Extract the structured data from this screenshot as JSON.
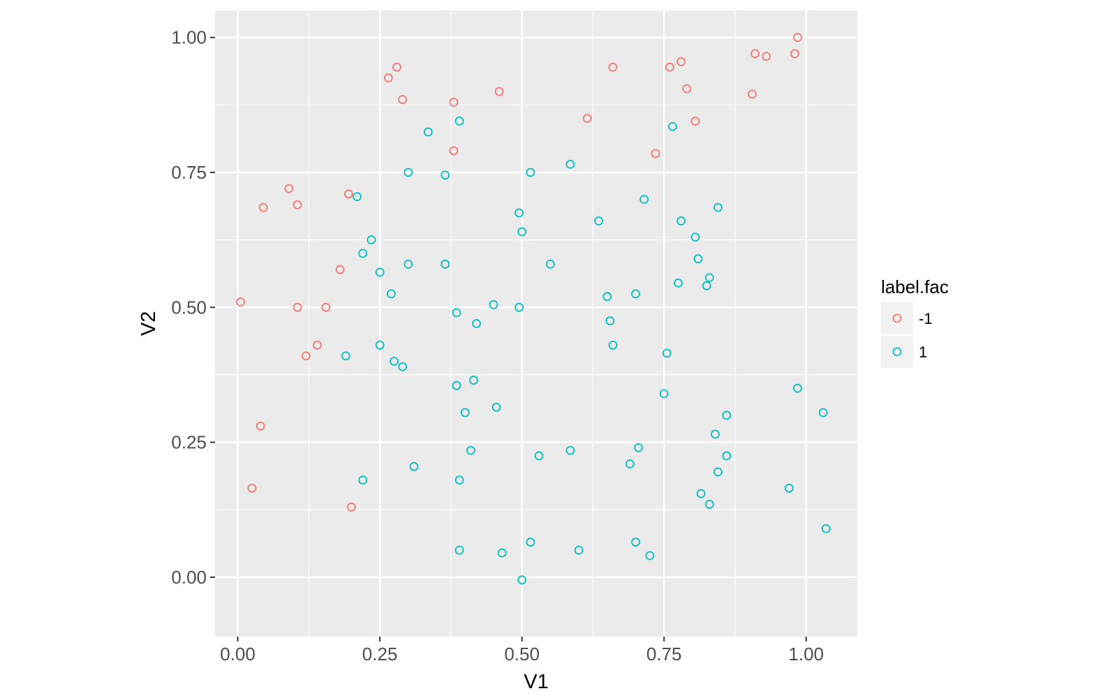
{
  "chart_data": {
    "type": "scatter",
    "title": "",
    "xlabel": "V1",
    "ylabel": "V2",
    "xlim": [
      -0.04,
      1.09
    ],
    "ylim": [
      -0.11,
      1.05
    ],
    "x_ticks": [
      0.0,
      0.25,
      0.5,
      0.75,
      1.0
    ],
    "x_tick_labels": [
      "0.00",
      "0.25",
      "0.50",
      "0.75",
      "1.00"
    ],
    "y_ticks": [
      0.0,
      0.25,
      0.5,
      0.75,
      1.0
    ],
    "y_tick_labels": [
      "0.00",
      "0.25",
      "0.50",
      "0.75",
      "1.00"
    ],
    "grid": true,
    "legend": {
      "title": "label.fac",
      "placement": "right"
    },
    "colors": {
      "panel_bg": "#EBEBEB",
      "grid": "#FFFFFF",
      "neg": "#F8766D",
      "pos": "#00BFC4"
    },
    "series": [
      {
        "name": "-1",
        "color": "#F8766D",
        "points": [
          [
            0.005,
            0.51
          ],
          [
            0.025,
            0.165
          ],
          [
            0.04,
            0.28
          ],
          [
            0.045,
            0.685
          ],
          [
            0.09,
            0.72
          ],
          [
            0.105,
            0.5
          ],
          [
            0.105,
            0.69
          ],
          [
            0.12,
            0.41
          ],
          [
            0.14,
            0.43
          ],
          [
            0.155,
            0.5
          ],
          [
            0.18,
            0.57
          ],
          [
            0.195,
            0.71
          ],
          [
            0.2,
            0.13
          ],
          [
            0.265,
            0.925
          ],
          [
            0.28,
            0.945
          ],
          [
            0.29,
            0.885
          ],
          [
            0.38,
            0.88
          ],
          [
            0.38,
            0.79
          ],
          [
            0.46,
            0.9
          ],
          [
            0.615,
            0.85
          ],
          [
            0.66,
            0.945
          ],
          [
            0.735,
            0.785
          ],
          [
            0.76,
            0.945
          ],
          [
            0.78,
            0.955
          ],
          [
            0.79,
            0.905
          ],
          [
            0.805,
            0.845
          ],
          [
            0.905,
            0.895
          ],
          [
            0.91,
            0.97
          ],
          [
            0.93,
            0.965
          ],
          [
            0.98,
            0.97
          ],
          [
            0.985,
            1.0
          ]
        ]
      },
      {
        "name": "1",
        "color": "#00BFC4",
        "points": [
          [
            0.19,
            0.41
          ],
          [
            0.21,
            0.705
          ],
          [
            0.22,
            0.6
          ],
          [
            0.22,
            0.18
          ],
          [
            0.235,
            0.625
          ],
          [
            0.25,
            0.43
          ],
          [
            0.25,
            0.565
          ],
          [
            0.27,
            0.525
          ],
          [
            0.275,
            0.4
          ],
          [
            0.29,
            0.39
          ],
          [
            0.3,
            0.75
          ],
          [
            0.3,
            0.58
          ],
          [
            0.31,
            0.205
          ],
          [
            0.335,
            0.825
          ],
          [
            0.365,
            0.745
          ],
          [
            0.365,
            0.58
          ],
          [
            0.385,
            0.355
          ],
          [
            0.385,
            0.49
          ],
          [
            0.39,
            0.05
          ],
          [
            0.39,
            0.845
          ],
          [
            0.39,
            0.18
          ],
          [
            0.4,
            0.305
          ],
          [
            0.41,
            0.235
          ],
          [
            0.415,
            0.365
          ],
          [
            0.42,
            0.47
          ],
          [
            0.45,
            0.505
          ],
          [
            0.455,
            0.315
          ],
          [
            0.465,
            0.045
          ],
          [
            0.495,
            0.5
          ],
          [
            0.495,
            0.675
          ],
          [
            0.5,
            0.64
          ],
          [
            0.5,
            -0.005
          ],
          [
            0.515,
            0.065
          ],
          [
            0.515,
            0.75
          ],
          [
            0.53,
            0.225
          ],
          [
            0.55,
            0.58
          ],
          [
            0.585,
            0.765
          ],
          [
            0.585,
            0.235
          ],
          [
            0.6,
            0.05
          ],
          [
            0.635,
            0.66
          ],
          [
            0.65,
            0.52
          ],
          [
            0.655,
            0.475
          ],
          [
            0.66,
            0.43
          ],
          [
            0.69,
            0.21
          ],
          [
            0.7,
            0.525
          ],
          [
            0.7,
            0.065
          ],
          [
            0.705,
            0.24
          ],
          [
            0.715,
            0.7
          ],
          [
            0.725,
            0.04
          ],
          [
            0.75,
            0.34
          ],
          [
            0.755,
            0.415
          ],
          [
            0.765,
            0.835
          ],
          [
            0.775,
            0.545
          ],
          [
            0.78,
            0.66
          ],
          [
            0.805,
            0.63
          ],
          [
            0.81,
            0.59
          ],
          [
            0.815,
            0.155
          ],
          [
            0.825,
            0.54
          ],
          [
            0.83,
            0.555
          ],
          [
            0.83,
            0.135
          ],
          [
            0.84,
            0.265
          ],
          [
            0.845,
            0.685
          ],
          [
            0.845,
            0.195
          ],
          [
            0.86,
            0.3
          ],
          [
            0.86,
            0.225
          ],
          [
            0.97,
            0.165
          ],
          [
            0.985,
            0.35
          ],
          [
            1.03,
            0.305
          ],
          [
            1.035,
            0.09
          ]
        ]
      }
    ]
  }
}
